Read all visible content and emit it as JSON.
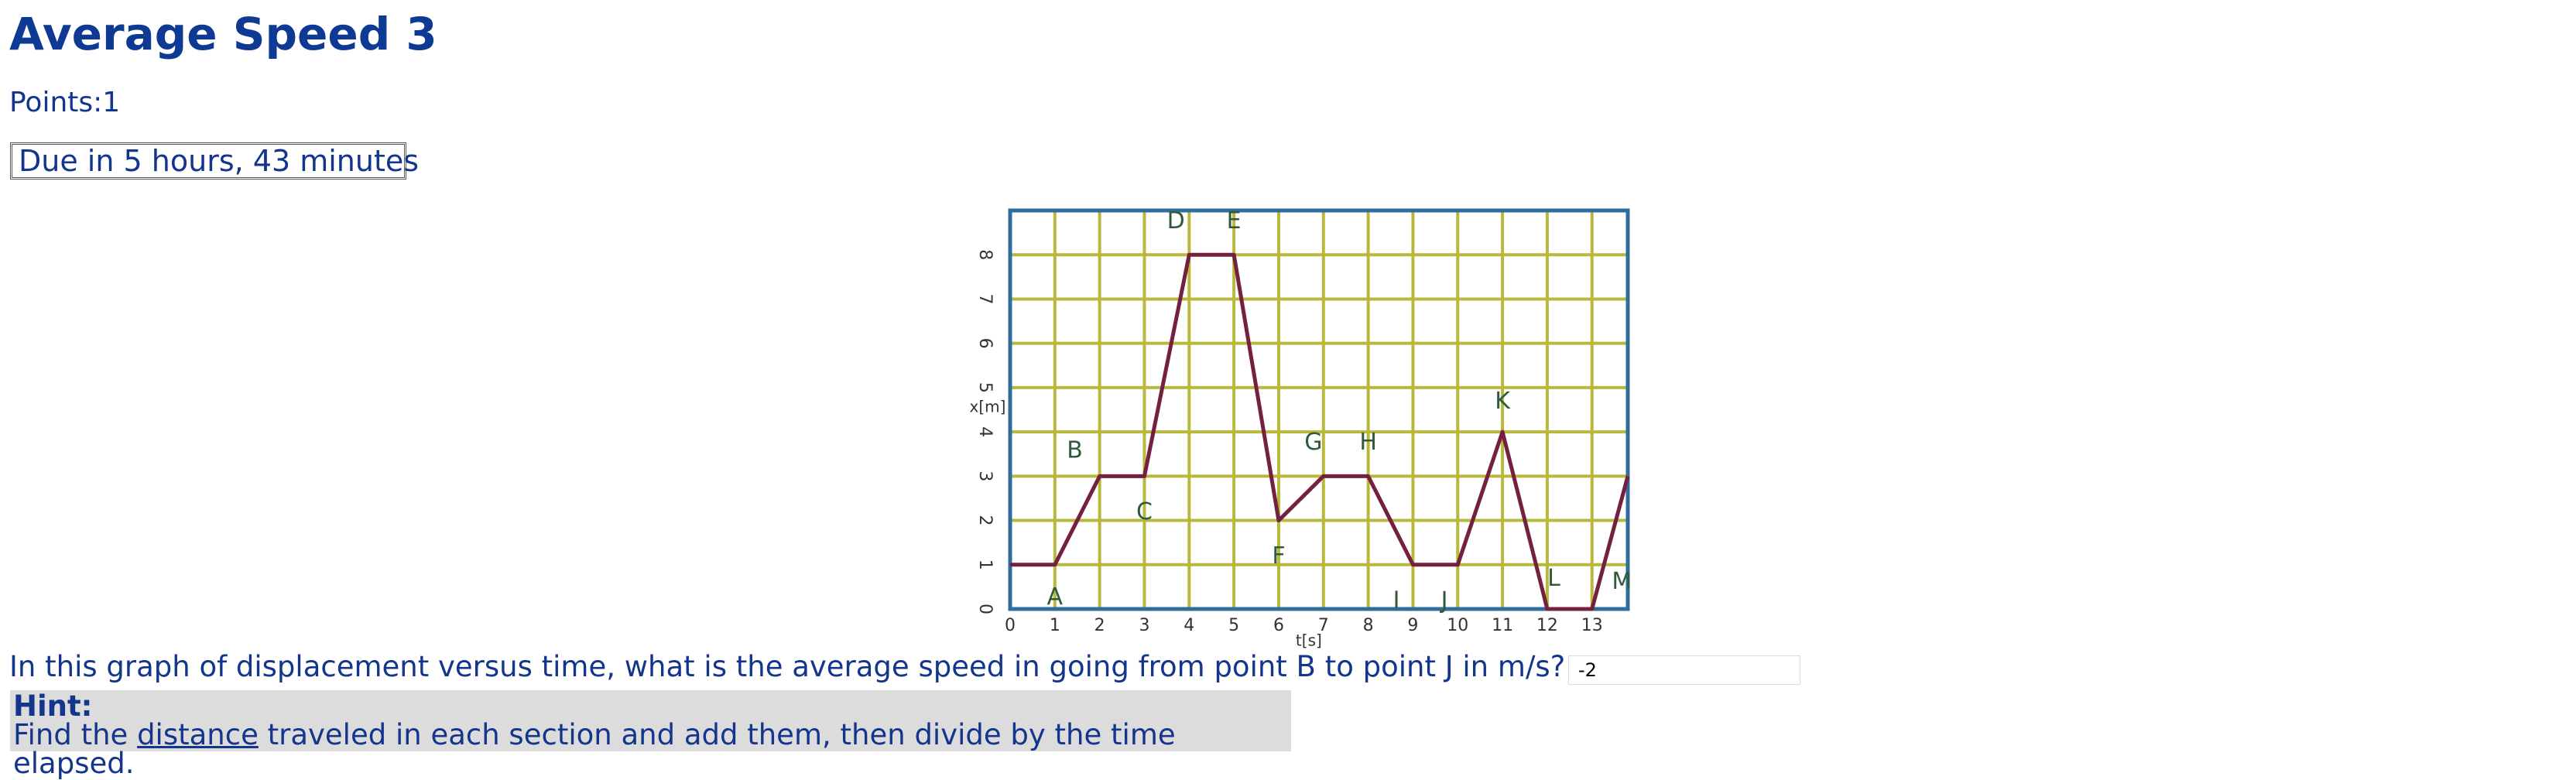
{
  "header": {
    "title": "Average Speed 3",
    "points_label": "Points:",
    "points_value": "1",
    "due": "Due in 5 hours, 43 minutes"
  },
  "chart_data": {
    "type": "line",
    "x_label": "t[s]",
    "y_label": "x[m]",
    "x": [
      0,
      1,
      2,
      3,
      4,
      5,
      6,
      7,
      8,
      9,
      10,
      11,
      12,
      13,
      13.8
    ],
    "values": [
      1,
      1,
      3,
      3,
      8,
      8,
      2,
      3,
      3,
      1,
      1,
      4,
      0,
      0,
      3
    ],
    "point_labels": [
      null,
      "A",
      "B",
      "C",
      "D",
      "E",
      "F",
      "G",
      "H",
      "I",
      "J",
      "K",
      "L",
      "M",
      null
    ],
    "xlim": [
      0,
      13.8
    ],
    "ylim": [
      0,
      9
    ],
    "xticks": [
      0,
      1,
      2,
      3,
      4,
      5,
      6,
      7,
      8,
      9,
      10,
      11,
      12,
      13
    ],
    "yticks": [
      0,
      1,
      2,
      3,
      4,
      5,
      6,
      7,
      8
    ],
    "grid": true,
    "color": "#74213f",
    "grid_color": "#b8b83a",
    "frame_color": "#2f6e9c"
  },
  "question": {
    "text": "In this graph of displacement versus time, what is the average speed in going from point B to point J in m/s?",
    "answer": "-2"
  },
  "hint": {
    "title": "Hint:",
    "before": "Find the ",
    "link": "distance",
    "after": " traveled in each section and add them, then divide by the time elapsed."
  }
}
